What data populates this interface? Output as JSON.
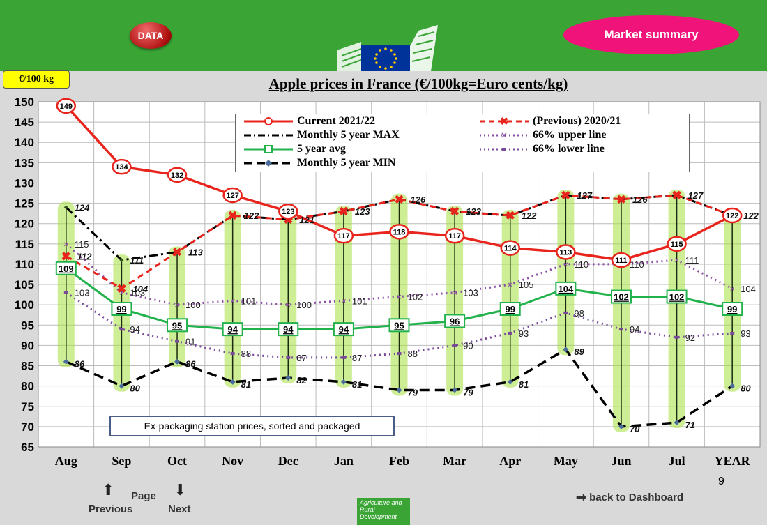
{
  "header": {
    "data_button": "DATA",
    "market_summary_button": "Market summary",
    "unit_badge": "€/100 kg"
  },
  "note": "Ex-packaging station prices, sorted and packaged",
  "footer": {
    "page_number": "9",
    "page_label": "Page",
    "previous_label": "Previous",
    "next_label": "Next",
    "dashboard_label": "back to Dashboard",
    "agri_logo_text": "Agriculture and Rural Development"
  },
  "colors": {
    "current": "#e8241c",
    "previous": "#e8241c",
    "max": "#000000",
    "avg": "#22b24c",
    "upper": "#8b4ea6",
    "lower": "#7a4a9a",
    "min": "#000000",
    "band": "#a6e040"
  },
  "chart_data": {
    "type": "line",
    "title": "Apple prices in France (€/100kg=Euro cents/kg)",
    "categories": [
      "Aug",
      "Sep",
      "Oct",
      "Nov",
      "Dec",
      "Jan",
      "Feb",
      "Mar",
      "Apr",
      "May",
      "Jun",
      "Jul",
      "YEAR"
    ],
    "ylim": [
      65,
      150
    ],
    "yticks": [
      65,
      70,
      75,
      80,
      85,
      90,
      95,
      100,
      105,
      110,
      115,
      120,
      125,
      130,
      135,
      140,
      145,
      150
    ],
    "grid": true,
    "legend_position": "top-right",
    "series": [
      {
        "name": "Current 2021/22",
        "values": [
          149,
          134,
          132,
          127,
          123,
          117,
          118,
          117,
          114,
          113,
          111,
          115,
          122
        ]
      },
      {
        "name": "(Previous) 2020/21",
        "values": [
          112,
          104,
          113,
          122,
          121,
          123,
          126,
          123,
          122,
          127,
          126,
          127,
          122
        ]
      },
      {
        "name": "Monthly 5 year MAX",
        "values": [
          124,
          111,
          113,
          122,
          121,
          123,
          126,
          123,
          122,
          127,
          126,
          127,
          122
        ]
      },
      {
        "name": "66% upper line",
        "values": [
          115,
          103,
          100,
          101,
          100,
          101,
          102,
          103,
          105,
          110,
          110,
          111,
          104
        ]
      },
      {
        "name": "5 year avg",
        "values": [
          109,
          99,
          95,
          94,
          94,
          94,
          95,
          96,
          99,
          104,
          102,
          102,
          99
        ]
      },
      {
        "name": "66% lower line",
        "values": [
          103,
          94,
          91,
          88,
          87,
          87,
          88,
          90,
          93,
          98,
          94,
          92,
          93
        ]
      },
      {
        "name": "Monthly 5 year MIN",
        "values": [
          86,
          80,
          86,
          81,
          82,
          81,
          79,
          79,
          81,
          89,
          70,
          71,
          80
        ]
      }
    ]
  }
}
